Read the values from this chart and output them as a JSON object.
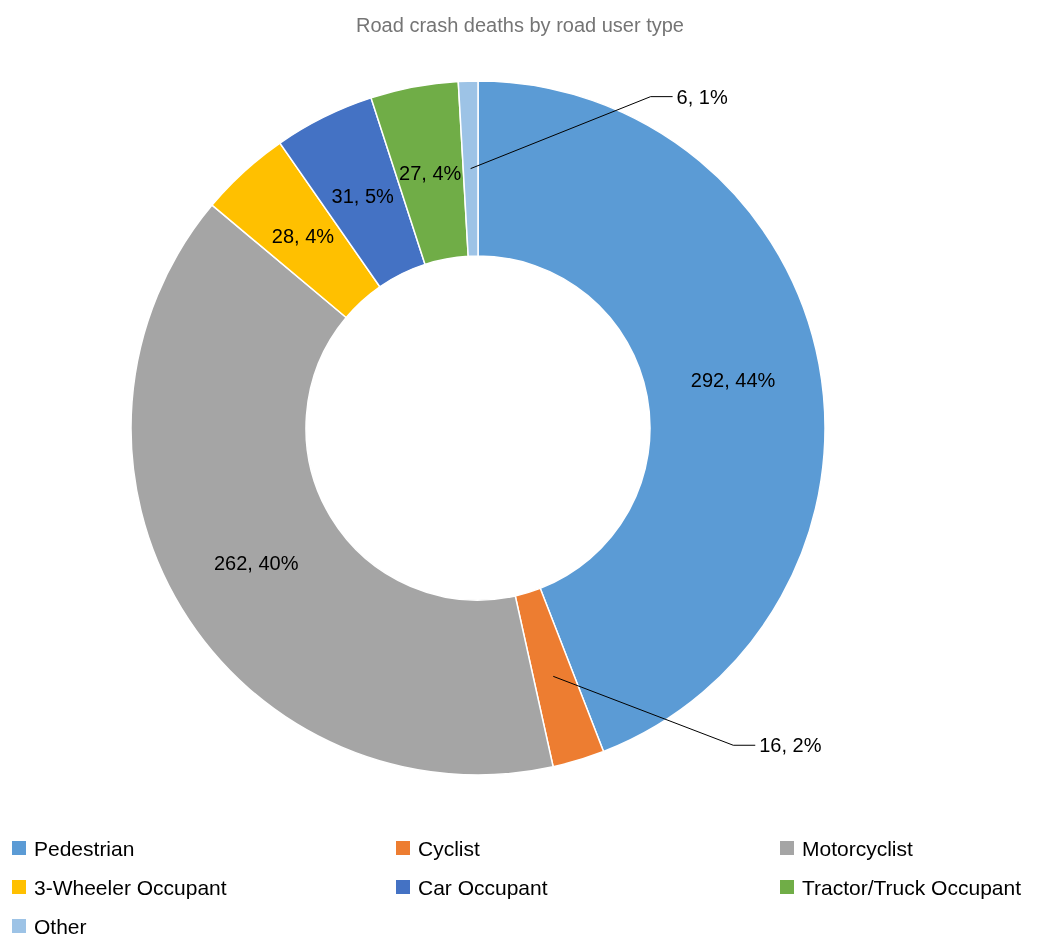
{
  "chart_data": {
    "type": "donut",
    "title": "Road crash deaths by road user type",
    "categories": [
      "Pedestrian",
      "Cyclist",
      "Motorcyclist",
      "3-Wheeler Occupant",
      "Car Occupant",
      "Tractor/Truck Occupant",
      "Other"
    ],
    "values": [
      292,
      16,
      262,
      28,
      31,
      27,
      6
    ],
    "colors": [
      "#5b9bd5",
      "#ed7d31",
      "#a5a5a5",
      "#ffc000",
      "#4472c4",
      "#70ad47",
      "#9dc3e6"
    ],
    "value_labels": [
      "292, 44%",
      "16, 2%",
      "262, 40%",
      "28, 4%",
      "31, 5%",
      "27, 4%",
      "6, 1%"
    ],
    "legend": "bottom"
  }
}
